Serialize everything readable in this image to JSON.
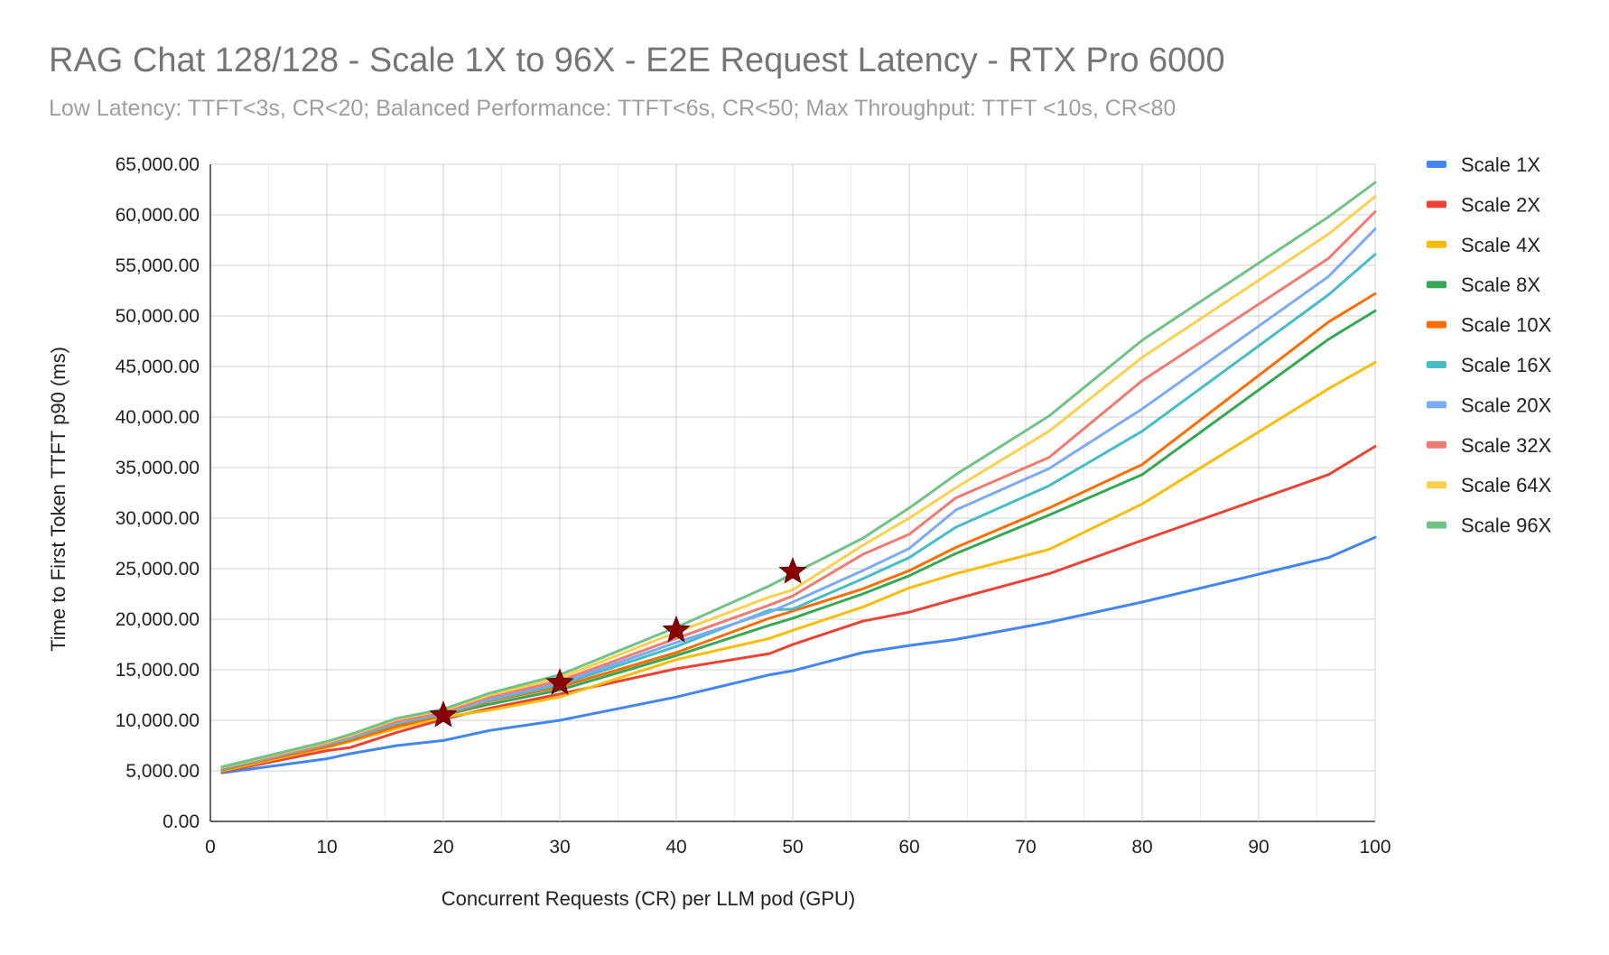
{
  "chart_data": {
    "type": "line",
    "title": "RAG Chat 128/128 - Scale 1X to 96X - E2E Request Latency - RTX Pro 6000",
    "subtitle": "Low Latency: TTFT<3s, CR<20; Balanced Performance: TTFT<6s, CR<50; Max Throughput: TTFT <10s, CR<80",
    "xlabel": "Concurrent Requests (CR) per LLM pod (GPU)",
    "ylabel": "Time to First Token TTFT p90 (ms)",
    "xlim": [
      0,
      100
    ],
    "ylim": [
      0,
      65000
    ],
    "x_ticks": [
      "0",
      "10",
      "20",
      "30",
      "40",
      "50",
      "60",
      "70",
      "80",
      "90",
      "100"
    ],
    "y_ticks": [
      "0.00",
      "5,000.00",
      "10,000.00",
      "15,000.00",
      "20,000.00",
      "25,000.00",
      "30,000.00",
      "35,000.00",
      "40,000.00",
      "45,000.00",
      "50,000.00",
      "55,000.00",
      "60,000.00",
      "65,000.00"
    ],
    "grid": true,
    "legend_position": "right",
    "x": [
      1,
      10,
      12,
      16,
      20,
      24,
      30,
      40,
      48,
      50,
      56,
      60,
      64,
      72,
      80,
      96,
      100
    ],
    "series": [
      {
        "name": "Scale 1X",
        "color": "#4285f4",
        "values": [
          4800,
          6200,
          6700,
          7500,
          8000,
          9000,
          10000,
          12300,
          14500,
          14900,
          16700,
          17400,
          18000,
          19700,
          21700,
          26100,
          28100
        ]
      },
      {
        "name": "Scale 2X",
        "color": "#ea4335",
        "values": [
          4900,
          7000,
          7300,
          8800,
          10100,
          11200,
          12600,
          15100,
          16600,
          17500,
          19800,
          20700,
          22000,
          24500,
          27800,
          34300,
          37100
        ]
      },
      {
        "name": "Scale 4X",
        "color": "#fbbc04",
        "values": [
          5000,
          7300,
          7900,
          9200,
          10300,
          11000,
          12300,
          16000,
          18100,
          18900,
          21200,
          23100,
          24500,
          26900,
          31400,
          42800,
          45400
        ]
      },
      {
        "name": "Scale 8X",
        "color": "#34a853",
        "values": [
          5100,
          7500,
          8100,
          9500,
          10500,
          11600,
          13000,
          16400,
          19400,
          20100,
          22500,
          24300,
          26500,
          30300,
          34300,
          47700,
          50500
        ]
      },
      {
        "name": "Scale 10X",
        "color": "#ff6d01",
        "values": [
          5150,
          7400,
          8000,
          9400,
          10500,
          11900,
          13300,
          16700,
          20100,
          20800,
          23000,
          24800,
          27100,
          31000,
          35300,
          49400,
          52200
        ]
      },
      {
        "name": "Scale 16X",
        "color": "#46bdc6",
        "values": [
          5200,
          7600,
          8200,
          9700,
          10600,
          12000,
          13500,
          17300,
          20900,
          21000,
          24000,
          26100,
          29100,
          33200,
          38600,
          52100,
          56100
        ]
      },
      {
        "name": "Scale 20X",
        "color": "#7baaf7",
        "values": [
          5250,
          7650,
          8300,
          9800,
          10700,
          12100,
          13700,
          17700,
          20700,
          21700,
          24800,
          27000,
          30800,
          34900,
          40800,
          53900,
          58600
        ]
      },
      {
        "name": "Scale 32X",
        "color": "#f07b72",
        "values": [
          5300,
          7700,
          8400,
          9900,
          10800,
          12300,
          13900,
          18100,
          21400,
          22300,
          26400,
          28400,
          32000,
          36000,
          43600,
          55700,
          60300
        ]
      },
      {
        "name": "Scale 64X",
        "color": "#fcd04f",
        "values": [
          5350,
          7800,
          8500,
          10100,
          11000,
          12500,
          14200,
          18700,
          22200,
          22900,
          27300,
          30000,
          33000,
          38600,
          45900,
          58100,
          61800
        ]
      },
      {
        "name": "Scale 96X",
        "color": "#71c287",
        "values": [
          5400,
          7900,
          8600,
          10200,
          11100,
          12700,
          14500,
          19200,
          23300,
          24500,
          28000,
          31000,
          34300,
          40100,
          47600,
          59800,
          63200
        ]
      }
    ],
    "markers": {
      "shape": "star",
      "color": "#8b0000",
      "points": [
        {
          "x": 20,
          "y": 10500
        },
        {
          "x": 30,
          "y": 13700
        },
        {
          "x": 40,
          "y": 18900
        },
        {
          "x": 50,
          "y": 24700
        }
      ]
    }
  }
}
